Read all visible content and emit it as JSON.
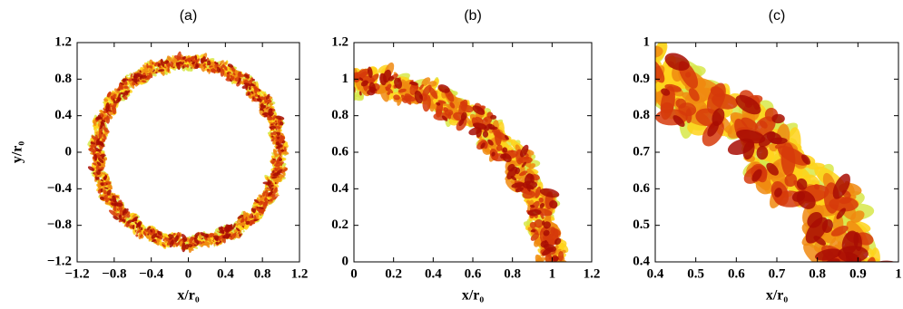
{
  "chart_data": [
    {
      "type": "contour",
      "title": "(a)",
      "xlabel": "x/r₀",
      "ylabel": "y/r₀",
      "xlim": [
        -1.2,
        1.2
      ],
      "ylim": [
        -1.2,
        1.2
      ],
      "xticks": [
        {
          "value": -1.2,
          "label": "−1.2"
        },
        {
          "value": -0.8,
          "label": "−0.8"
        },
        {
          "value": -0.4,
          "label": "−0.4"
        },
        0,
        0.4,
        0.8,
        1.2
      ],
      "yticks": [
        {
          "value": -1.2,
          "label": "−1.2"
        },
        {
          "value": -0.8,
          "label": "−0.8"
        },
        {
          "value": -0.4,
          "label": "−0.4"
        },
        0,
        0.4,
        0.8,
        1.2
      ]
    },
    {
      "type": "contour",
      "title": "(b)",
      "xlabel": "x/r₀",
      "xlim": [
        0,
        1.2
      ],
      "ylim": [
        0,
        1.2
      ],
      "xticks": [
        0,
        0.2,
        0.4,
        0.6,
        0.8,
        1,
        1.2
      ],
      "yticks": [
        0,
        0.2,
        0.4,
        0.6,
        0.8,
        1,
        1.2
      ]
    },
    {
      "type": "contour",
      "title": "(c)",
      "xlabel": "x/r₀",
      "xlim": [
        0.4,
        1
      ],
      "ylim": [
        0.4,
        1
      ],
      "xticks": [
        0.4,
        0.5,
        0.6,
        0.7,
        0.8,
        0.9,
        1
      ],
      "yticks": [
        0.4,
        0.5,
        0.6,
        0.7,
        0.8,
        0.9,
        1
      ]
    }
  ]
}
